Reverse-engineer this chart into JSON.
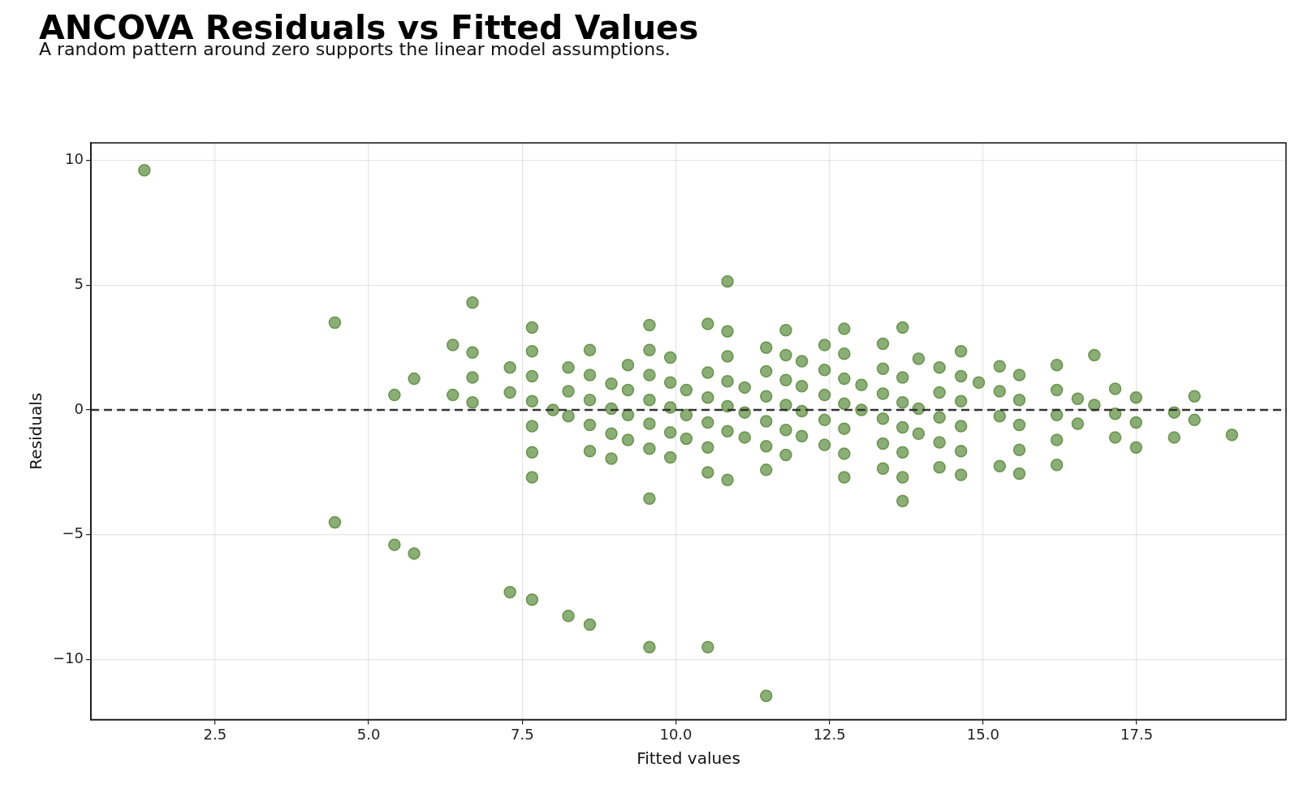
{
  "chart_data": {
    "type": "scatter",
    "title": "ANCOVA Residuals vs Fitted Values",
    "subtitle": "A random pattern around zero supports the linear model assumptions.",
    "xlabel": "Fitted values",
    "ylabel": "Residuals",
    "xlim": [
      0.48,
      19.93
    ],
    "ylim": [
      -12.4,
      10.7
    ],
    "xticks": [
      2.5,
      {
        "value": 5,
        "label": "5.0"
      },
      7.5,
      {
        "value": 10,
        "label": "10.0"
      },
      12.5,
      {
        "value": 15,
        "label": "15.0"
      },
      17.5
    ],
    "yticks": [
      {
        "value": -10,
        "label": "−10"
      },
      {
        "value": -5,
        "label": "−5"
      },
      0,
      5,
      10
    ],
    "grid": true,
    "marker": "circle",
    "legend": false,
    "ref_lines": [
      {
        "axis": "y",
        "value": 0,
        "color": "#333333",
        "line_style": "dashed"
      }
    ],
    "series": [
      {
        "color": "#5a8a3c",
        "x": [
          1.35,
          4.45,
          4.45,
          5.42,
          5.42,
          5.74,
          5.74,
          6.37,
          6.37,
          6.69,
          6.69,
          6.69,
          6.69,
          7.3,
          7.3,
          7.3,
          7.66,
          7.66,
          7.66,
          7.66,
          7.66,
          7.66,
          7.66,
          7.66,
          8.0,
          8.25,
          8.25,
          8.25,
          8.25,
          8.6,
          8.6,
          8.6,
          8.6,
          8.6,
          8.6,
          8.95,
          8.95,
          8.95,
          8.95,
          9.22,
          9.22,
          9.22,
          9.22,
          9.57,
          9.57,
          9.57,
          9.57,
          9.57,
          9.57,
          9.57,
          9.57,
          9.91,
          9.91,
          9.91,
          9.91,
          9.91,
          10.17,
          10.17,
          10.17,
          10.52,
          10.52,
          10.52,
          10.52,
          10.52,
          10.52,
          10.52,
          10.84,
          10.84,
          10.84,
          10.84,
          10.84,
          10.84,
          10.84,
          11.12,
          11.12,
          11.12,
          11.47,
          11.47,
          11.47,
          11.47,
          11.47,
          11.47,
          11.47,
          11.79,
          11.79,
          11.79,
          11.79,
          11.79,
          11.79,
          12.05,
          12.05,
          12.05,
          12.05,
          12.42,
          12.42,
          12.42,
          12.42,
          12.42,
          12.74,
          12.74,
          12.74,
          12.74,
          12.74,
          12.74,
          12.74,
          13.02,
          13.02,
          13.37,
          13.37,
          13.37,
          13.37,
          13.37,
          13.37,
          13.69,
          13.69,
          13.69,
          13.69,
          13.69,
          13.69,
          13.69,
          13.95,
          13.95,
          13.95,
          14.29,
          14.29,
          14.29,
          14.29,
          14.29,
          14.64,
          14.64,
          14.64,
          14.64,
          14.64,
          14.64,
          14.93,
          15.27,
          15.27,
          15.27,
          15.27,
          15.59,
          15.59,
          15.59,
          15.59,
          15.59,
          16.2,
          16.2,
          16.2,
          16.2,
          16.2,
          16.54,
          16.54,
          16.81,
          16.81,
          17.15,
          17.15,
          17.15,
          17.49,
          17.49,
          17.49,
          18.11,
          18.11,
          18.44,
          18.44,
          19.05
        ],
        "values": [
          9.6,
          3.5,
          -4.5,
          0.6,
          -5.4,
          1.25,
          -5.75,
          2.6,
          0.6,
          4.3,
          2.3,
          1.3,
          0.3,
          1.7,
          0.7,
          -7.3,
          3.3,
          2.35,
          1.35,
          0.35,
          -0.65,
          -1.7,
          -2.7,
          -7.6,
          0.0,
          1.7,
          0.75,
          -0.25,
          -8.25,
          2.4,
          1.4,
          0.4,
          -0.6,
          -1.65,
          -8.6,
          1.05,
          0.05,
          -0.95,
          -1.95,
          1.8,
          0.8,
          -0.2,
          -1.2,
          3.4,
          2.4,
          1.4,
          0.4,
          -0.55,
          -1.55,
          -3.55,
          -9.5,
          2.1,
          1.1,
          0.1,
          -0.9,
          -1.9,
          0.8,
          -0.2,
          -1.15,
          3.45,
          1.5,
          0.5,
          -0.5,
          -1.5,
          -2.5,
          -9.5,
          5.15,
          3.15,
          2.15,
          1.15,
          0.15,
          -0.85,
          -2.8,
          0.9,
          -0.1,
          -1.1,
          2.5,
          1.55,
          0.55,
          -0.45,
          -1.45,
          -2.4,
          -11.45,
          3.2,
          2.2,
          1.2,
          0.2,
          -0.8,
          -1.8,
          1.95,
          0.95,
          -0.05,
          -1.05,
          2.6,
          1.6,
          0.6,
          -0.4,
          -1.4,
          3.25,
          2.25,
          1.25,
          0.25,
          -0.75,
          -1.75,
          -2.7,
          1.0,
          0.0,
          2.65,
          1.65,
          0.65,
          -0.35,
          -1.35,
          -2.35,
          3.3,
          1.3,
          0.3,
          -0.7,
          -1.7,
          -2.7,
          -3.65,
          2.05,
          0.05,
          -0.95,
          1.7,
          0.7,
          -0.3,
          -1.3,
          -2.3,
          2.35,
          1.35,
          0.35,
          -0.65,
          -1.65,
          -2.6,
          1.1,
          1.75,
          0.75,
          -0.25,
          -2.25,
          1.4,
          0.4,
          -0.6,
          -1.6,
          -2.55,
          1.8,
          0.8,
          -0.2,
          -1.2,
          -2.2,
          0.45,
          -0.55,
          2.2,
          0.2,
          0.85,
          -0.15,
          -1.1,
          0.5,
          -0.5,
          -1.5,
          -0.1,
          -1.1,
          0.55,
          -0.4,
          -1.0
        ]
      }
    ]
  }
}
